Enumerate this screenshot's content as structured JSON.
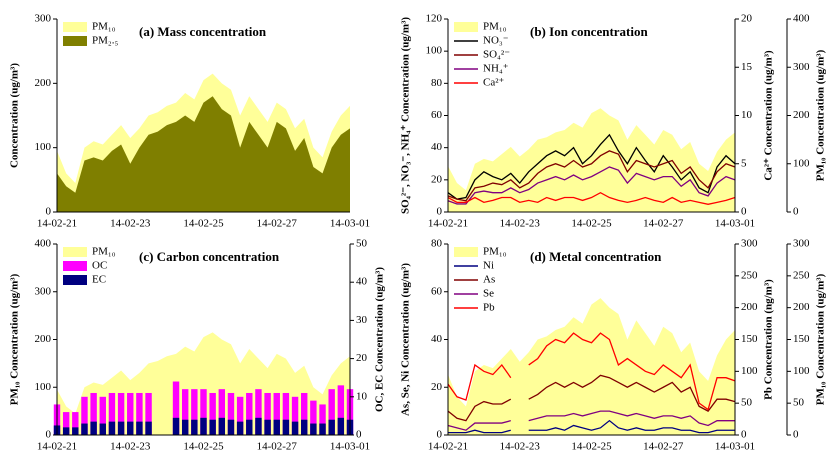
{
  "chart_data": [
    {
      "type": "line",
      "title": "(a) Mass concentration",
      "ylabel": "Concentration (ug/m³)",
      "categories": [
        "14-02-21",
        null,
        null,
        null,
        null,
        null,
        null,
        null,
        "14-02-23",
        null,
        null,
        null,
        null,
        null,
        null,
        null,
        "14-02-25",
        null,
        null,
        null,
        null,
        null,
        null,
        null,
        "14-02-27",
        null,
        null,
        null,
        null,
        null,
        null,
        null,
        "14-03-01"
      ],
      "ylim": [
        0,
        300
      ],
      "yticks": [
        0,
        100,
        200,
        300
      ],
      "legend": "upper left",
      "series": [
        {
          "name": "PM₁₀",
          "type": "area",
          "color": "#ffff99",
          "values": [
            95,
            60,
            45,
            100,
            110,
            105,
            120,
            135,
            115,
            130,
            150,
            155,
            165,
            170,
            185,
            175,
            205,
            215,
            200,
            190,
            150,
            180,
            160,
            140,
            170,
            160,
            130,
            145,
            100,
            85,
            125,
            150,
            165
          ]
        },
        {
          "name": "PM₂.₅",
          "type": "area",
          "color": "#7f7f00",
          "values": [
            60,
            40,
            30,
            80,
            85,
            80,
            95,
            105,
            75,
            100,
            120,
            125,
            135,
            140,
            150,
            140,
            170,
            180,
            160,
            150,
            100,
            140,
            120,
            100,
            140,
            130,
            95,
            115,
            70,
            60,
            100,
            120,
            130
          ]
        }
      ]
    },
    {
      "type": "line",
      "title": "(b) Ion concentration",
      "ylabel": "SO₄²⁻, NO₃⁻, NH₄⁺ Concentration (ug/m³)",
      "y2label": "Ca²⁺ Concentration (ug/m³)",
      "y3label": "PM₁₀ Concentration (ug/m³)",
      "categories": [
        "14-02-21",
        null,
        null,
        null,
        null,
        null,
        null,
        null,
        "14-02-23",
        null,
        null,
        null,
        null,
        null,
        null,
        null,
        "14-02-25",
        null,
        null,
        null,
        null,
        null,
        null,
        null,
        "14-02-27",
        null,
        null,
        null,
        null,
        null,
        null,
        null,
        "14-03-01"
      ],
      "ylim": [
        0,
        120
      ],
      "yticks": [
        0,
        20,
        40,
        60,
        80,
        100,
        120
      ],
      "y2lim": [
        0,
        20
      ],
      "y2ticks": [
        0,
        5,
        10,
        15,
        20
      ],
      "y3lim": [
        0,
        400
      ],
      "y3ticks": [
        0,
        100,
        200,
        300,
        400
      ],
      "legend": "upper left",
      "series": [
        {
          "name": "PM₁₀",
          "type": "area",
          "axis": "y3",
          "color": "#ffff99",
          "values": [
            95,
            60,
            45,
            100,
            110,
            105,
            120,
            135,
            115,
            130,
            150,
            155,
            165,
            170,
            185,
            175,
            205,
            215,
            200,
            190,
            150,
            180,
            160,
            140,
            170,
            160,
            130,
            145,
            100,
            85,
            125,
            150,
            165
          ]
        },
        {
          "name": "NO₃⁻",
          "type": "line",
          "color": "#000000",
          "values": [
            12,
            8,
            9,
            20,
            25,
            22,
            20,
            24,
            18,
            25,
            30,
            35,
            38,
            35,
            40,
            30,
            35,
            42,
            48,
            38,
            30,
            40,
            32,
            25,
            35,
            28,
            20,
            25,
            15,
            12,
            28,
            35,
            30
          ]
        },
        {
          "name": "SO₄²⁻",
          "type": "line",
          "color": "#800000",
          "values": [
            10,
            8,
            7,
            15,
            16,
            18,
            17,
            20,
            15,
            18,
            24,
            28,
            30,
            28,
            32,
            28,
            30,
            35,
            38,
            36,
            25,
            32,
            30,
            28,
            30,
            32,
            24,
            28,
            20,
            15,
            25,
            30,
            28
          ]
        },
        {
          "name": "NH₄⁺",
          "type": "line",
          "color": "#800080",
          "values": [
            7,
            5,
            5,
            12,
            13,
            12,
            12,
            15,
            12,
            14,
            18,
            20,
            22,
            20,
            23,
            20,
            22,
            25,
            28,
            26,
            18,
            24,
            22,
            20,
            22,
            22,
            16,
            20,
            12,
            10,
            18,
            22,
            20
          ]
        },
        {
          "name": "Ca²⁺",
          "type": "line",
          "axis": "y2",
          "color": "#ff0000",
          "values": [
            1.5,
            1,
            1,
            1.5,
            1,
            1.2,
            1.5,
            1.5,
            1,
            1.2,
            1,
            1.5,
            1.2,
            1.5,
            1.5,
            1.2,
            1.5,
            2,
            1.5,
            1.2,
            1,
            1.2,
            1.5,
            1.2,
            1,
            1.5,
            1,
            1.2,
            1,
            0.8,
            1,
            1.2,
            1.5
          ]
        }
      ]
    },
    {
      "type": "line",
      "title": "(c) Carbon concentration",
      "ylabel": "PM₁₀ Concentration (ug/m³)",
      "y2label": "OC, EC Concentration (ug/m³)",
      "categories": [
        "14-02-21",
        null,
        null,
        null,
        null,
        null,
        null,
        null,
        "14-02-23",
        null,
        null,
        null,
        null,
        null,
        null,
        null,
        "14-02-25",
        null,
        null,
        null,
        null,
        null,
        null,
        null,
        "14-02-27",
        null,
        null,
        null,
        null,
        null,
        null,
        null,
        "14-03-01"
      ],
      "ylim": [
        0,
        400
      ],
      "yticks": [
        0,
        100,
        200,
        300,
        400
      ],
      "y2lim": [
        0,
        50
      ],
      "y2ticks": [
        0,
        10,
        20,
        30,
        40,
        50
      ],
      "legend": "upper left",
      "series": [
        {
          "name": "PM₁₀",
          "type": "area",
          "color": "#ffff99",
          "values": [
            95,
            60,
            45,
            100,
            110,
            105,
            120,
            135,
            115,
            130,
            150,
            155,
            165,
            170,
            185,
            175,
            205,
            215,
            200,
            190,
            150,
            180,
            160,
            140,
            170,
            160,
            130,
            145,
            100,
            85,
            125,
            150,
            165
          ]
        },
        {
          "name": "OC",
          "type": "bar",
          "axis": "y2",
          "color": "#ff00ff",
          "values": [
            8,
            6,
            6,
            10,
            11,
            10,
            11,
            11,
            11,
            11,
            11,
            null,
            null,
            14,
            12,
            12,
            12,
            11,
            12,
            11,
            10,
            11,
            12,
            11,
            11,
            11,
            10,
            11,
            9,
            8,
            12,
            13,
            12
          ]
        },
        {
          "name": "EC",
          "type": "bar",
          "axis": "y2",
          "color": "#000080",
          "values": [
            2.5,
            2,
            2,
            3,
            3.5,
            3,
            3.5,
            3.5,
            3.5,
            3.5,
            3.5,
            null,
            null,
            4.5,
            4,
            4,
            4.5,
            4,
            4.5,
            4,
            3.5,
            4,
            4.5,
            4,
            4,
            4,
            3.5,
            4,
            3,
            3,
            4,
            4.5,
            4
          ]
        }
      ]
    },
    {
      "type": "line",
      "title": "(d) Metal concentration",
      "ylabel": "As, Se, Ni Concentration (ug/m³)",
      "y2label": "Pb Concentration (ng/m³)",
      "y3label": "PM₁₀ Concentration (ug/m³)",
      "categories": [
        "14-02-21",
        null,
        null,
        null,
        null,
        null,
        null,
        null,
        "14-02-23",
        null,
        null,
        null,
        null,
        null,
        null,
        null,
        "14-02-25",
        null,
        null,
        null,
        null,
        null,
        null,
        null,
        "14-02-27",
        null,
        null,
        null,
        null,
        null,
        null,
        null,
        "14-03-01"
      ],
      "ylim": [
        0,
        80
      ],
      "yticks": [
        0,
        20,
        40,
        60,
        80
      ],
      "y2lim": [
        0,
        300
      ],
      "y2ticks": [
        0,
        50,
        100,
        150,
        200,
        250,
        300
      ],
      "y3lim": [
        0,
        300
      ],
      "y3ticks": [
        0,
        50,
        100,
        150,
        200,
        250,
        300
      ],
      "legend": "upper left",
      "series": [
        {
          "name": "PM₁₀",
          "type": "area",
          "axis": "y3",
          "color": "#ffff99",
          "values": [
            95,
            60,
            45,
            100,
            110,
            105,
            120,
            135,
            115,
            130,
            150,
            155,
            165,
            170,
            185,
            175,
            205,
            215,
            200,
            190,
            150,
            180,
            160,
            140,
            170,
            160,
            130,
            145,
            100,
            85,
            125,
            150,
            165
          ]
        },
        {
          "name": "Ni",
          "type": "line",
          "color": "#000080",
          "values": [
            1,
            1,
            1,
            2,
            1,
            1,
            1,
            2,
            null,
            2,
            2,
            2,
            3,
            2,
            4,
            3,
            2,
            3,
            6,
            3,
            2,
            3,
            2,
            2,
            3,
            3,
            2,
            2,
            1,
            1,
            2,
            2,
            2
          ]
        },
        {
          "name": "As",
          "type": "line",
          "color": "#800000",
          "values": [
            10,
            7,
            6,
            12,
            14,
            13,
            13,
            15,
            null,
            15,
            17,
            20,
            22,
            20,
            22,
            20,
            22,
            25,
            24,
            22,
            20,
            22,
            20,
            18,
            20,
            22,
            18,
            20,
            12,
            10,
            15,
            15,
            14
          ]
        },
        {
          "name": "Se",
          "type": "line",
          "color": "#800080",
          "values": [
            4,
            3,
            2,
            5,
            5,
            5,
            5,
            6,
            null,
            6,
            7,
            8,
            8,
            8,
            9,
            8,
            9,
            10,
            10,
            9,
            8,
            9,
            8,
            7,
            8,
            8,
            7,
            8,
            5,
            4,
            6,
            6,
            6
          ]
        },
        {
          "name": "Pb",
          "type": "line",
          "axis": "y2",
          "color": "#ff0000",
          "values": [
            80,
            60,
            55,
            110,
            100,
            95,
            110,
            90,
            null,
            110,
            120,
            140,
            150,
            145,
            160,
            150,
            145,
            160,
            150,
            110,
            120,
            110,
            100,
            95,
            110,
            100,
            90,
            110,
            50,
            40,
            90,
            90,
            85
          ]
        }
      ]
    }
  ]
}
